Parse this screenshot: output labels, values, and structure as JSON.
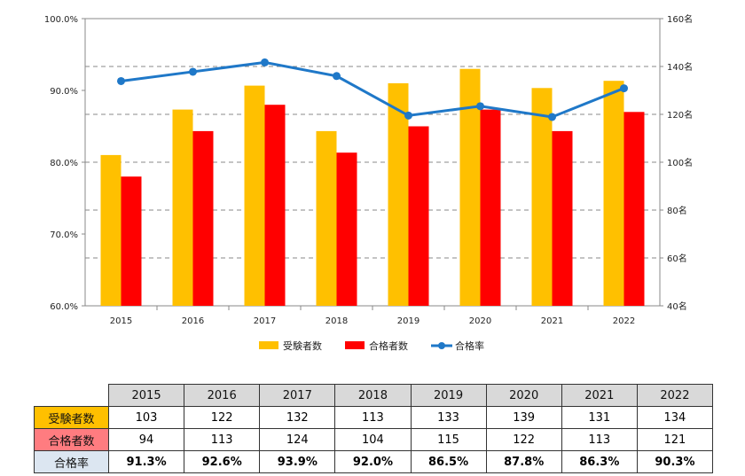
{
  "chart_data": {
    "type": "bar",
    "categories": [
      "2015",
      "2016",
      "2017",
      "2018",
      "2019",
      "2020",
      "2021",
      "2022"
    ],
    "series": [
      {
        "name": "受験者数",
        "kind": "bar",
        "axis": "right",
        "color": "#ffc000",
        "values": [
          103,
          122,
          132,
          113,
          133,
          139,
          131,
          134
        ]
      },
      {
        "name": "合格者数",
        "kind": "bar",
        "axis": "right",
        "color": "#ff0000",
        "values": [
          94,
          113,
          124,
          104,
          115,
          122,
          113,
          121
        ]
      },
      {
        "name": "合格率",
        "kind": "line",
        "axis": "left",
        "color": "#1f78c8",
        "values": [
          91.3,
          92.6,
          93.9,
          92.0,
          86.5,
          87.8,
          86.3,
          90.3
        ]
      }
    ],
    "y_left": {
      "range": [
        60,
        100
      ],
      "ticks": [
        "60.0%",
        "70.0%",
        "80.0%",
        "90.0%",
        "100.0%"
      ]
    },
    "y_right": {
      "range": [
        40,
        160
      ],
      "ticks": [
        "40名",
        "60名",
        "80名",
        "100名",
        "120名",
        "140名",
        "160名"
      ]
    },
    "grid": "dashed horizontal at right-axis ticks",
    "legend_position": "bottom"
  },
  "table": {
    "years": [
      "2015",
      "2016",
      "2017",
      "2018",
      "2019",
      "2020",
      "2021",
      "2022"
    ],
    "rows": [
      {
        "label": "受験者数",
        "values": [
          "103",
          "122",
          "132",
          "113",
          "133",
          "139",
          "131",
          "134"
        ]
      },
      {
        "label": "合格者数",
        "values": [
          "94",
          "113",
          "124",
          "104",
          "115",
          "122",
          "113",
          "121"
        ]
      },
      {
        "label": "合格率",
        "values": [
          "91.3%",
          "92.6%",
          "93.9%",
          "92.0%",
          "86.5%",
          "87.8%",
          "86.3%",
          "90.3%"
        ]
      }
    ]
  }
}
